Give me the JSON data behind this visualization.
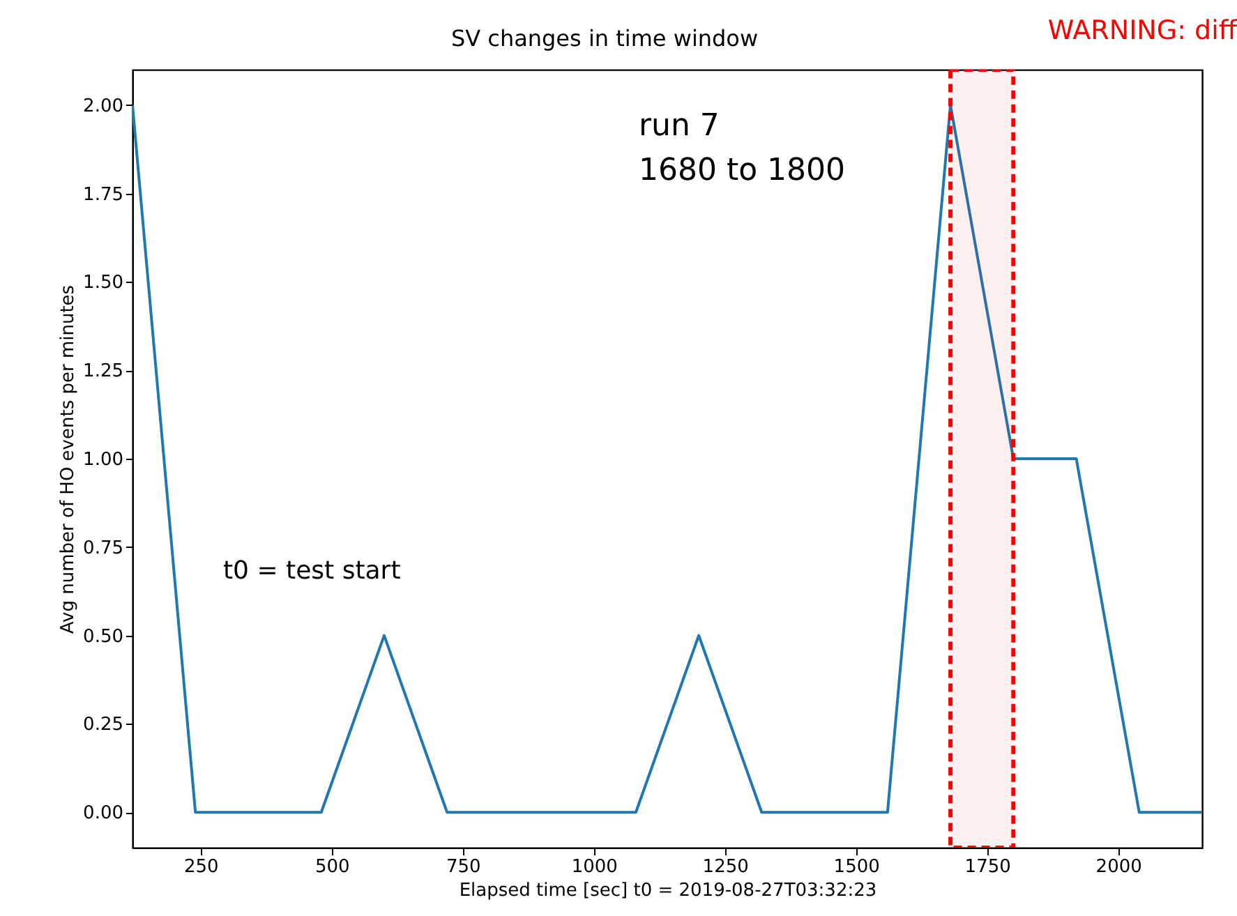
{
  "chart_data": {
    "type": "line",
    "title": "SV changes in time window",
    "xlabel": "Elapsed time [sec]    t0 =   2019-08-27T03:32:23",
    "ylabel": "Avg number of HO events per minutes",
    "x": [
      120,
      240,
      360,
      480,
      600,
      720,
      840,
      960,
      1080,
      1200,
      1320,
      1440,
      1560,
      1680,
      1800,
      1920,
      2040,
      2160
    ],
    "series": [
      {
        "color": "#1f77b4",
        "values": [
          2,
          0,
          0,
          0,
          0.5,
          0,
          0,
          0,
          0,
          0.5,
          0,
          0,
          0,
          2,
          1,
          1,
          0,
          0
        ]
      }
    ],
    "xlim": [
      120,
      2160
    ],
    "xticks": [
      250,
      500,
      750,
      1000,
      1250,
      1500,
      1750,
      2000
    ],
    "ylim": [
      -0.1,
      2.1
    ],
    "yticks": [
      {
        "value": 0,
        "label": "0.00"
      },
      {
        "value": 0.25,
        "label": "0.25"
      },
      {
        "value": 0.5,
        "label": "0.50"
      },
      {
        "value": 0.75,
        "label": "0.75"
      },
      {
        "value": 1,
        "label": "1.00"
      },
      {
        "value": 1.25,
        "label": "1.25"
      },
      {
        "value": 1.5,
        "label": "1.50"
      },
      {
        "value": 1.75,
        "label": "1.75"
      },
      {
        "value": 2,
        "label": "2.00"
      }
    ],
    "annotations": [
      "run 7\n1680 to 1800",
      "t0 = test start",
      "WARNING: diff"
    ],
    "bands": [
      {
        "axis": "x",
        "from": 1680,
        "to": 1800,
        "color": "#ff0000"
      }
    ],
    "grid": false
  }
}
